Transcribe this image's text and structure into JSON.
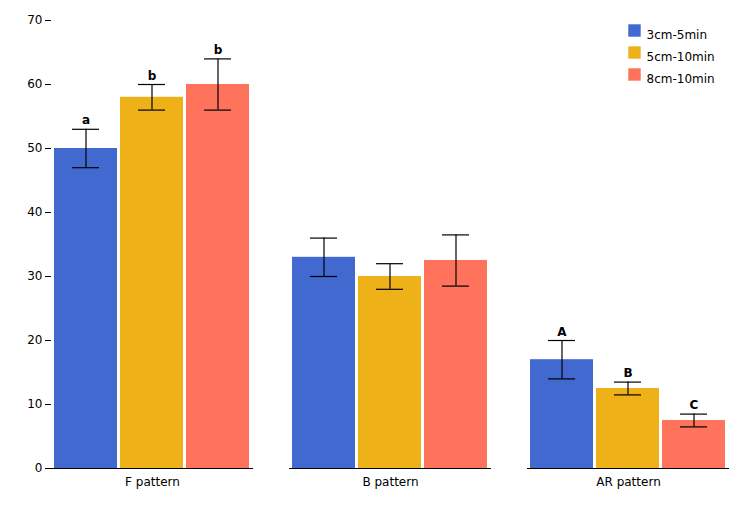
{
  "chart_data": {
    "type": "bar",
    "categories": [
      "F pattern",
      "B pattern",
      "AR pattern"
    ],
    "series": [
      {
        "name": "3cm-5min",
        "values": [
          50,
          33,
          17
        ],
        "errors": [
          3,
          3,
          3
        ],
        "annotations": [
          "a",
          null,
          "A"
        ]
      },
      {
        "name": "5cm-10min",
        "values": [
          58,
          30,
          12.5
        ],
        "errors": [
          2,
          2,
          1
        ],
        "annotations": [
          "b",
          null,
          "B"
        ]
      },
      {
        "name": "8cm-10min",
        "values": [
          60,
          32.5,
          7.5
        ],
        "errors": [
          4,
          4,
          1
        ],
        "annotations": [
          "b",
          null,
          "C"
        ]
      }
    ],
    "ylim": [
      0,
      70
    ],
    "yticks": [
      0,
      10,
      20,
      30,
      40,
      50,
      60,
      70
    ],
    "grid": false,
    "legend": "upper right"
  }
}
